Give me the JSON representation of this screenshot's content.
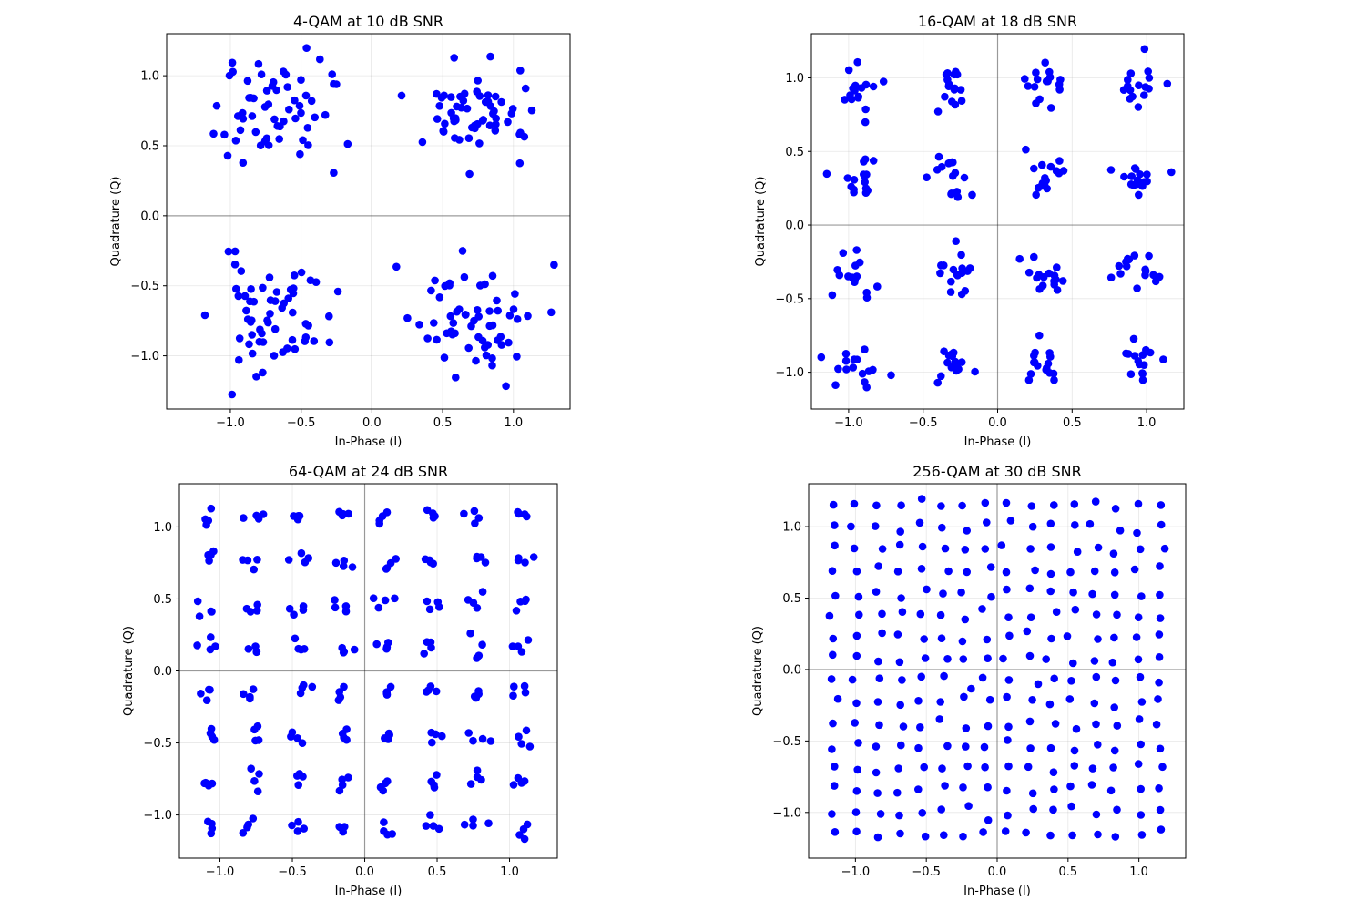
{
  "chart_data": [
    {
      "type": "scatter",
      "title": "4-QAM at 10 dB SNR",
      "xlabel": "In-Phase (I)",
      "ylabel": "Quadrature (Q)",
      "xlim": [
        -1.45,
        1.4
      ],
      "ylim": [
        -1.38,
        1.3
      ],
      "xticks": [
        -1.0,
        -0.5,
        0.0,
        0.5,
        1.0
      ],
      "yticks": [
        -1.0,
        -0.5,
        0.0,
        0.5,
        1.0
      ],
      "tick_labels_x": [
        "−1.0",
        "−0.5",
        "0.0",
        "0.5",
        "1.0"
      ],
      "tick_labels_y": [
        "−1.0",
        "−0.5",
        "0.0",
        "0.5",
        "1.0"
      ],
      "grid": true,
      "point_color": "#0000ff",
      "constellation": {
        "levels": [
          -0.707,
          0.707
        ],
        "noise_sd": 0.2,
        "points_per_cluster": 60,
        "seed": 11
      },
      "points": []
    },
    {
      "type": "scatter",
      "title": "16-QAM at 18 dB SNR",
      "xlabel": "In-Phase (I)",
      "ylabel": "Quadrature (Q)",
      "xlim": [
        -1.25,
        1.25
      ],
      "ylim": [
        -1.25,
        1.3
      ],
      "xticks": [
        -1.0,
        -0.5,
        0.0,
        0.5,
        1.0
      ],
      "yticks": [
        -1.0,
        -0.5,
        0.0,
        0.5,
        1.0
      ],
      "tick_labels_x": [
        "−1.0",
        "−0.5",
        "0.0",
        "0.5",
        "1.0"
      ],
      "tick_labels_y": [
        "−1.0",
        "−0.5",
        "0.0",
        "0.5",
        "1.0"
      ],
      "grid": true,
      "point_color": "#0000ff",
      "constellation": {
        "levels": [
          -0.95,
          -0.32,
          0.32,
          0.95
        ],
        "noise_sd": 0.075,
        "points_per_cluster": 16,
        "seed": 22
      },
      "points": []
    },
    {
      "type": "scatter",
      "title": "64-QAM at 24 dB SNR",
      "xlabel": "In-Phase (I)",
      "ylabel": "Quadrature (Q)",
      "xlim": [
        -1.28,
        1.33
      ],
      "ylim": [
        -1.3,
        1.3
      ],
      "xticks": [
        -1.0,
        -0.5,
        0.0,
        0.5,
        1.0
      ],
      "yticks": [
        -1.0,
        -0.5,
        0.0,
        0.5,
        1.0
      ],
      "tick_labels_x": [
        "−1.0",
        "−0.5",
        "0.0",
        "0.5",
        "1.0"
      ],
      "tick_labels_y": [
        "−1.0",
        "−0.5",
        "0.0",
        "0.5",
        "1.0"
      ],
      "grid": true,
      "point_color": "#0000ff",
      "constellation": {
        "levels": [
          -1.08,
          -0.77,
          -0.46,
          -0.15,
          0.15,
          0.46,
          0.77,
          1.08
        ],
        "noise_sd": 0.035,
        "points_per_cluster": 4,
        "seed": 33
      },
      "points": []
    },
    {
      "type": "scatter",
      "title": "256-QAM at 30 dB SNR",
      "xlabel": "In-Phase (I)",
      "ylabel": "Quadrature (Q)",
      "xlim": [
        -1.33,
        1.33
      ],
      "ylim": [
        -1.32,
        1.3
      ],
      "xticks": [
        -1.0,
        -0.5,
        0.0,
        0.5,
        1.0
      ],
      "yticks": [
        -1.0,
        -0.5,
        0.0,
        0.5,
        1.0
      ],
      "tick_labels_x": [
        "−1.0",
        "−0.5",
        "0.0",
        "0.5",
        "1.0"
      ],
      "tick_labels_y": [
        "−1.0",
        "−0.5",
        "0.0",
        "0.5",
        "1.0"
      ],
      "grid": true,
      "point_color": "#0000ff",
      "constellation": {
        "levels": [
          -1.15,
          -0.997,
          -0.843,
          -0.69,
          -0.537,
          -0.383,
          -0.23,
          -0.077,
          0.077,
          0.23,
          0.383,
          0.537,
          0.69,
          0.843,
          0.997,
          1.15
        ],
        "noise_sd": 0.018,
        "points_per_cluster": 1,
        "seed": 44
      },
      "points": []
    }
  ]
}
